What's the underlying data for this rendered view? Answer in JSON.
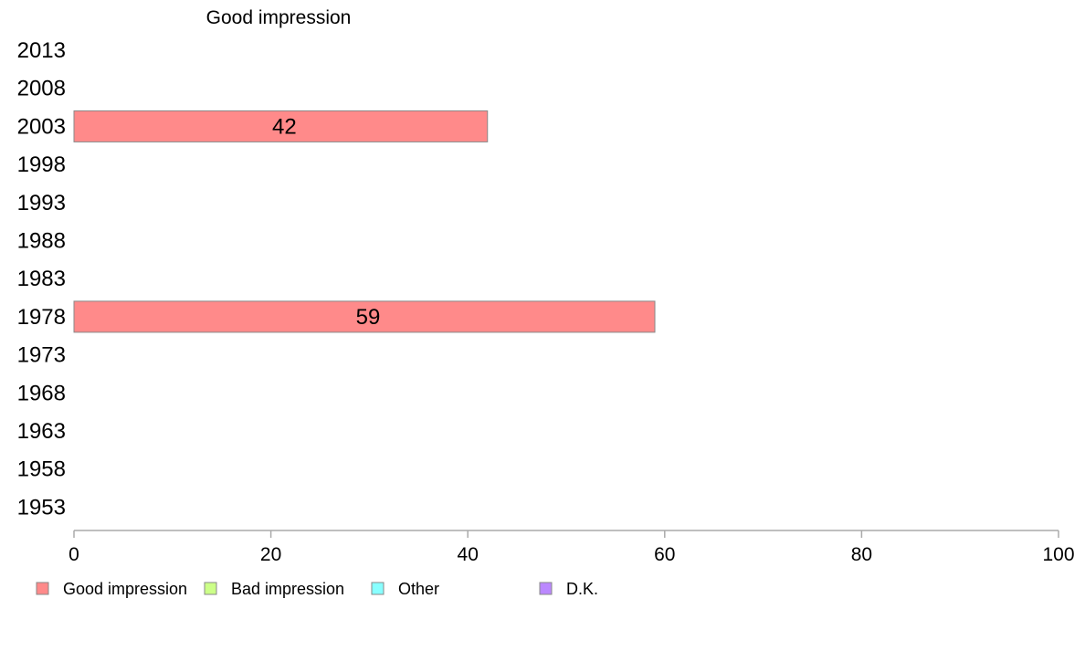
{
  "chart_data": {
    "type": "bar",
    "orientation": "horizontal",
    "title": "Good impression",
    "categories": [
      "2013",
      "2008",
      "2003",
      "1998",
      "1993",
      "1988",
      "1983",
      "1978",
      "1973",
      "1968",
      "1963",
      "1958",
      "1953"
    ],
    "series": [
      {
        "name": "Good impression",
        "color": "#ff8a8a",
        "values": [
          null,
          null,
          42,
          null,
          null,
          null,
          null,
          59,
          null,
          null,
          null,
          null,
          null
        ]
      }
    ],
    "xlim": [
      0,
      100
    ],
    "xticks": [
      0,
      20,
      40,
      60,
      80,
      100
    ],
    "grid": false,
    "legend": {
      "placement": "bottom",
      "entries": [
        {
          "label": "Good impression",
          "color": "#ff8a8a"
        },
        {
          "label": "Bad impression",
          "color": "#ccff88"
        },
        {
          "label": "Other",
          "color": "#88ffff"
        },
        {
          "label": "D.K.",
          "color": "#bb88ff"
        }
      ]
    }
  }
}
